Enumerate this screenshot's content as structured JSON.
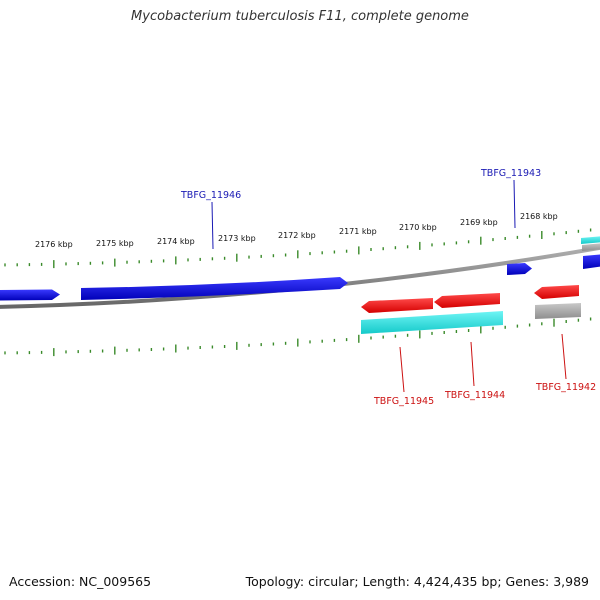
{
  "title": "Mycobacterium tuberculosis F11, complete genome",
  "footer": {
    "accession": "Accession: NC_009565",
    "summary": "Topology: circular; Length: 4,424,435 bp; Genes: 3,989"
  },
  "scale_labels": [
    "2176 kbp",
    "2175 kbp",
    "2174 kbp",
    "2173 kbp",
    "2172 kbp",
    "2171 kbp",
    "2170 kbp",
    "2169 kbp",
    "2168 kbp"
  ],
  "genes": {
    "forward_labeled": [
      {
        "id": "TBFG_11946",
        "color": "#1a1ab4"
      },
      {
        "id": "TBFG_11943",
        "color": "#1a1ab4"
      }
    ],
    "reverse_labeled": [
      {
        "id": "TBFG_11945",
        "color": "#cc1111"
      },
      {
        "id": "TBFG_11944",
        "color": "#cc1111"
      },
      {
        "id": "TBFG_11942",
        "color": "#cc1111"
      }
    ]
  },
  "colors": {
    "forward_gene": "#1010d8",
    "reverse_gene": "#ee1111",
    "cds_cyan": "#22dddd",
    "pseudo_gray": "#a8a8a8",
    "backbone": "#888888",
    "tick_green": "#3a8a2a",
    "label_blue": "#1a1ab4",
    "label_red": "#cc1111"
  }
}
